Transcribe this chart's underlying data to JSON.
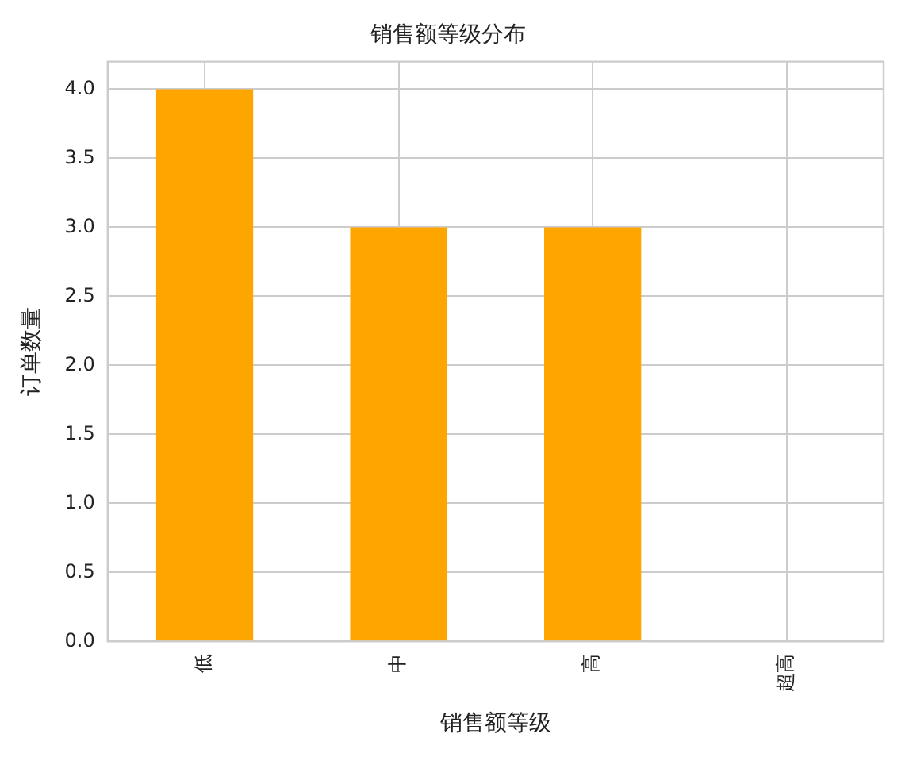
{
  "chart_data": {
    "type": "bar",
    "title": "销售额等级分布",
    "xlabel": "销售额等级",
    "ylabel": "订单数量",
    "categories": [
      "低",
      "中",
      "高",
      "超高"
    ],
    "values": [
      4,
      3,
      3,
      0
    ],
    "color": "#ffa500",
    "ylim": [
      0,
      4.2
    ],
    "yticks": [
      {
        "value": 0,
        "label": "0.0"
      },
      {
        "value": 0.5,
        "label": "0.5"
      },
      {
        "value": 1,
        "label": "1.0"
      },
      {
        "value": 1.5,
        "label": "1.5"
      },
      {
        "value": 2,
        "label": "2.0"
      },
      {
        "value": 2.5,
        "label": "2.5"
      },
      {
        "value": 3,
        "label": "3.0"
      },
      {
        "value": 3.5,
        "label": "3.5"
      },
      {
        "value": 4,
        "label": "4.0"
      }
    ],
    "grid": true,
    "legend": false
  }
}
